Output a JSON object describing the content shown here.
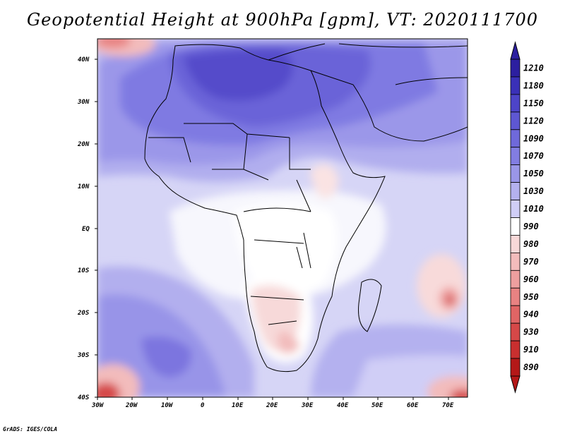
{
  "title": "Geopotential Height at 900hPa [gpm], VT: 2020111700",
  "credit": "GrADS: IGES/COLA",
  "axes": {
    "lon_labels": [
      "30W",
      "20W",
      "10W",
      "0",
      "10E",
      "20E",
      "30E",
      "40E",
      "50E",
      "60E",
      "70E"
    ],
    "lat_labels": [
      "40N",
      "30N",
      "20N",
      "10N",
      "EQ",
      "10S",
      "20S",
      "30S",
      "40S"
    ]
  },
  "colorbar": {
    "labels": [
      "1210",
      "1180",
      "1150",
      "1120",
      "1090",
      "1070",
      "1050",
      "1030",
      "1010",
      "990",
      "980",
      "970",
      "960",
      "950",
      "940",
      "930",
      "910",
      "890"
    ],
    "colors": [
      "#2c1fa0",
      "#3a30b8",
      "#4d44c8",
      "#5e57d2",
      "#6f69da",
      "#827de2",
      "#9a96e8",
      "#b4b1ef",
      "#d0cef6",
      "#ffffff",
      "#f8d8d8",
      "#f3bcbc",
      "#ee9f9f",
      "#e88282",
      "#e06565",
      "#d64848",
      "#c92f2f",
      "#b41818"
    ]
  },
  "icons": {
    "up": "triangle-up-icon",
    "down": "triangle-down-icon"
  }
}
